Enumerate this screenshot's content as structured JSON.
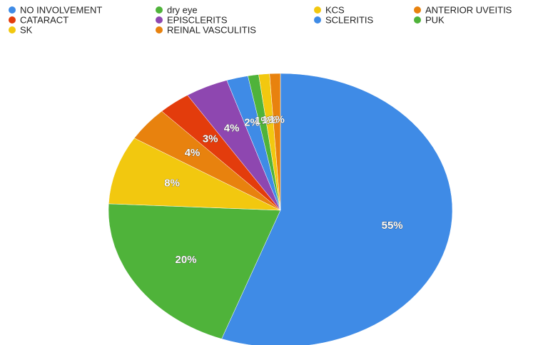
{
  "chart_data": {
    "type": "pie",
    "categories": [
      "NO INVOLVEMENT",
      "dry eye",
      "KCS",
      "ANTERIOR UVEITIS",
      "CATARACT",
      "EPISCLERITS",
      "SCLERITIS",
      "PUK",
      "SK",
      "REINAL VASCULITIS"
    ],
    "values": [
      55,
      20,
      8,
      4,
      3,
      4,
      2,
      1,
      1,
      1
    ],
    "value_labels": [
      "55%",
      "20%",
      "8%",
      "4%",
      "3%",
      "4%",
      "2%",
      "1%",
      "1%",
      "1%"
    ],
    "colors": [
      "#3f8be6",
      "#4fb33a",
      "#f2c80f",
      "#e8820e",
      "#e33c0c",
      "#8e47b0",
      "#3f8be6",
      "#4fb33a",
      "#f2c80f",
      "#e8820e"
    ],
    "legend": "top"
  }
}
